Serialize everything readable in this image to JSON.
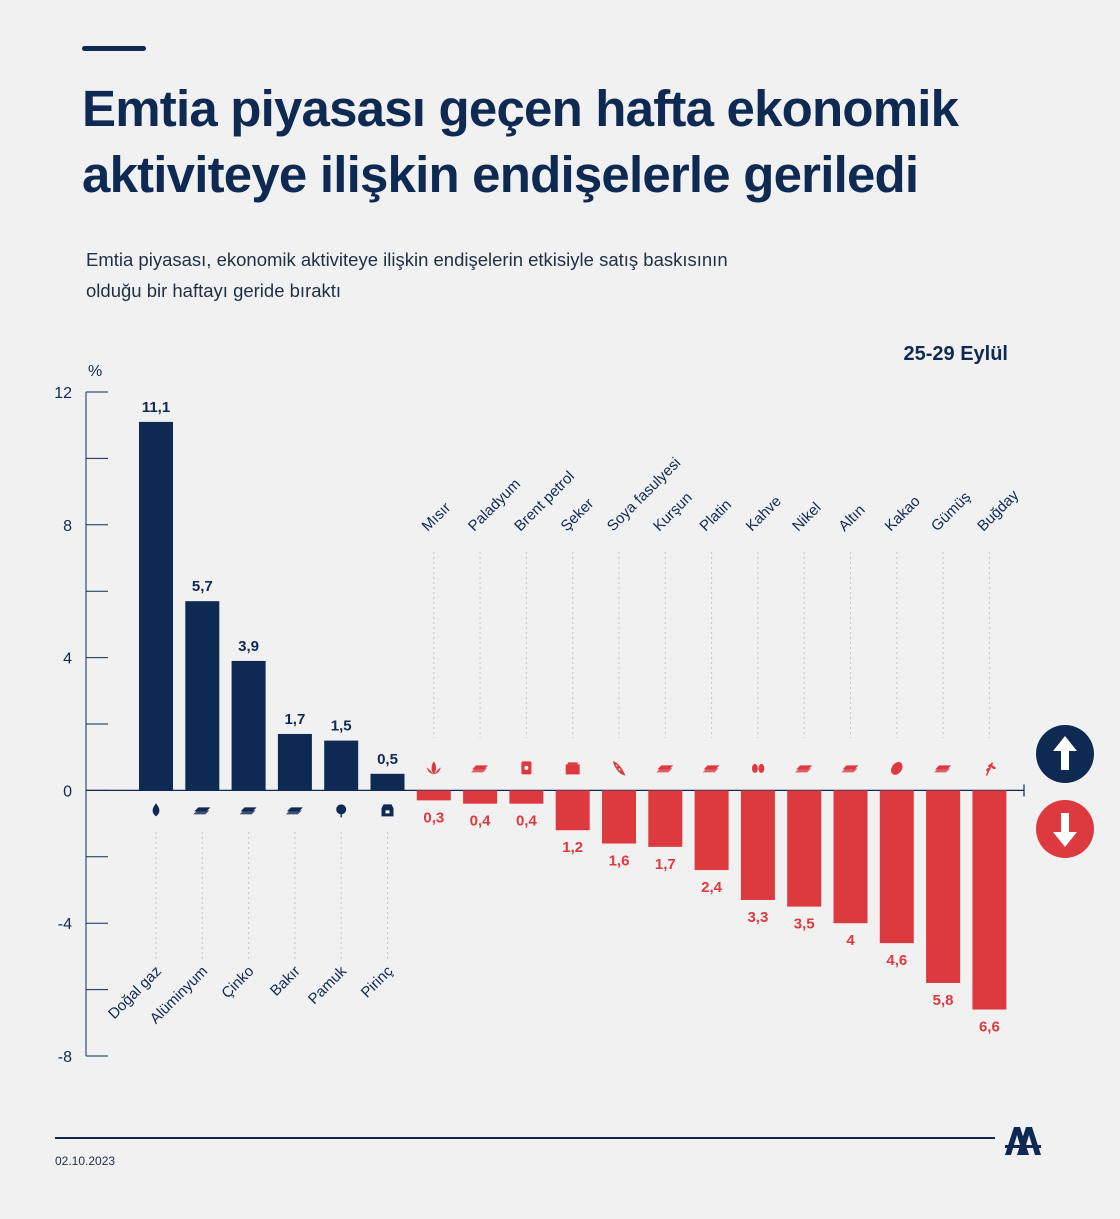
{
  "title": "Emtia piyasası geçen hafta ekonomik aktiviteye ilişkin endişelerle geriledi",
  "subtitle": "Emtia piyasası, ekonomik aktiviteye ilişkin endişelerin etkisiyle satış baskısının olduğu bir haftayı geride bıraktı",
  "period": "25-29 Eylül",
  "date": "02.10.2023",
  "colors": {
    "up": "#0e2a53",
    "down": "#dc3a3f",
    "text": "#0e2a53"
  },
  "chart_data": {
    "type": "bar",
    "ylabel": "%",
    "ylim": [
      -8,
      12
    ],
    "yticks": [
      12,
      8,
      4,
      0,
      -4,
      -8
    ],
    "yticks_labels": [
      "12",
      "8",
      "4",
      "0",
      "-4",
      "-8"
    ],
    "grid": false,
    "categories": [
      "Doğal gaz",
      "Alüminyum",
      "Çinko",
      "Bakır",
      "Pamuk",
      "Pirinç",
      "Mısır",
      "Paladyum",
      "Brent petrol",
      "Şeker",
      "Soya fasulyesi",
      "Kurşun",
      "Platin",
      "Kahve",
      "Nikel",
      "Altın",
      "Kakao",
      "Gümüş",
      "Buğday"
    ],
    "values": [
      11.1,
      5.7,
      3.9,
      1.7,
      1.5,
      0.5,
      -0.3,
      -0.4,
      -0.4,
      -1.2,
      -1.6,
      -1.7,
      -2.4,
      -3.3,
      -3.5,
      -4,
      -4.6,
      -5.8,
      -6.6
    ],
    "value_labels": [
      "11,1",
      "5,7",
      "3,9",
      "1,7",
      "1,5",
      "0,5",
      "0,3",
      "0,4",
      "0,4",
      "1,2",
      "1,6",
      "1,7",
      "2,4",
      "3,3",
      "3,5",
      "4",
      "4,6",
      "5,8",
      "6,6"
    ],
    "icons": [
      "gas-flame-icon",
      "metal-ingots-icon",
      "metal-ingots-icon",
      "metal-ingots-icon",
      "cotton-icon",
      "rice-sack-icon",
      "corn-icon",
      "metal-ingots-icon",
      "oil-barrel-icon",
      "sugar-icon",
      "soybean-icon",
      "metal-ingots-icon",
      "metal-ingots-icon",
      "coffee-beans-icon",
      "metal-ingots-icon",
      "metal-ingots-icon",
      "cocoa-icon",
      "metal-ingots-icon",
      "wheat-icon"
    ]
  }
}
